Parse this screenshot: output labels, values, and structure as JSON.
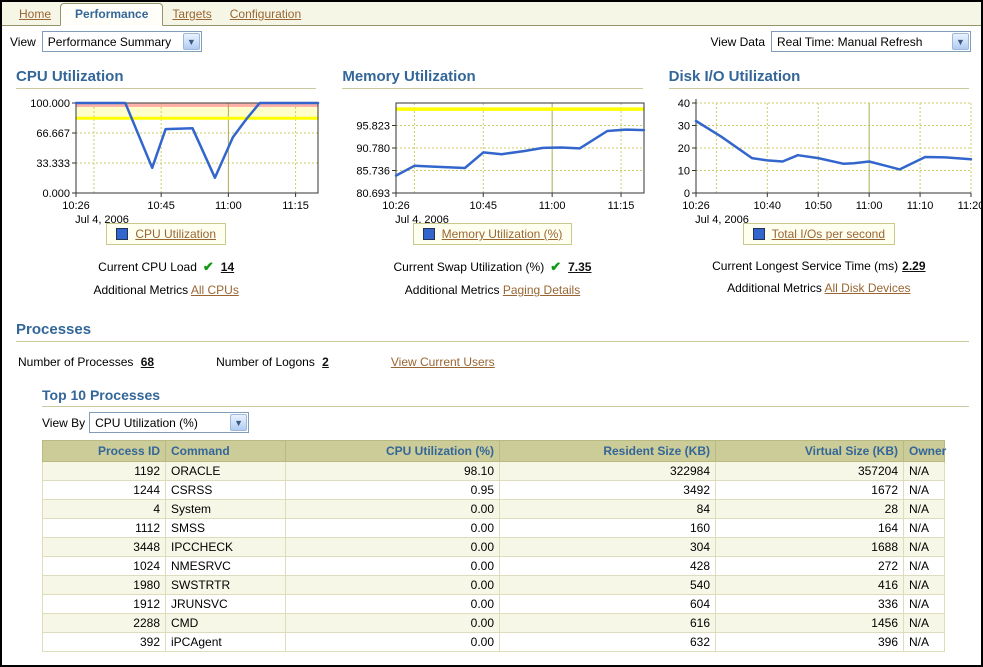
{
  "tabs": {
    "items": [
      {
        "label": "Home",
        "active": false
      },
      {
        "label": "Performance",
        "active": true
      },
      {
        "label": "Targets",
        "active": false
      },
      {
        "label": "Configuration",
        "active": false
      }
    ]
  },
  "toolbar": {
    "view_label": "View",
    "view_value": "Performance Summary",
    "view_data_label": "View Data",
    "view_data_value": "Real Time: Manual Refresh"
  },
  "colors": {
    "accent_blue": "#336699",
    "link_brown": "#996633",
    "series_blue": "#3366cc",
    "warning_yellow": "#ffff00",
    "critical_pink": "#ffb0a8",
    "header_tan": "#cccc99"
  },
  "chart_data": [
    {
      "type": "line",
      "title": "CPU Utilization",
      "x_axis_note": "x values are minutes after 10:26",
      "xlim": [
        0,
        54
      ],
      "ylim": [
        0,
        100
      ],
      "frame": "box",
      "yticks": [
        {
          "v": 0,
          "label": "0.000"
        },
        {
          "v": 33.333,
          "label": "33.333"
        },
        {
          "v": 66.667,
          "label": "66.667"
        },
        {
          "v": 100,
          "label": "100.000"
        }
      ],
      "xticks": [
        {
          "v": 0,
          "label": "10:26"
        },
        {
          "v": 19,
          "label": "10:45"
        },
        {
          "v": 34,
          "label": "11:00"
        },
        {
          "v": 49,
          "label": "11:15"
        }
      ],
      "date_label": "Jul 4, 2006",
      "legend": {
        "label": "CPU Utilization",
        "color": "#3366cc"
      },
      "bands": [
        {
          "from": 95.5,
          "to": 99.3,
          "color": "#ffb0a8"
        },
        {
          "from": 83,
          "to": 95.5,
          "color": "#ffffcc"
        }
      ],
      "threshold_lines": [
        {
          "v": 83,
          "color": "#ffff00",
          "width": 3
        }
      ],
      "grid": {
        "h_dotted": [
          33.333,
          66.667
        ],
        "v_dotted": [
          4,
          19,
          49
        ],
        "v_solid": [
          34
        ]
      },
      "series": [
        {
          "name": "CPU Utilization",
          "points": [
            [
              0,
              100
            ],
            [
              11,
              100
            ],
            [
              17,
              28
            ],
            [
              20,
              71
            ],
            [
              26,
              72
            ],
            [
              31,
              17
            ],
            [
              35,
              62
            ],
            [
              38,
              82
            ],
            [
              41,
              100
            ],
            [
              54,
              100
            ]
          ]
        }
      ]
    },
    {
      "type": "line",
      "title": "Memory Utilization",
      "x_axis_note": "x values are minutes after 10:26",
      "xlim": [
        0,
        54
      ],
      "ylim": [
        80.693,
        100.866
      ],
      "frame": "box",
      "yticks": [
        {
          "v": 80.693,
          "label": "80.693"
        },
        {
          "v": 85.736,
          "label": "85.736"
        },
        {
          "v": 90.78,
          "label": "90.780"
        },
        {
          "v": 95.823,
          "label": "95.823"
        }
      ],
      "xticks": [
        {
          "v": 0,
          "label": "10:26"
        },
        {
          "v": 19,
          "label": "10:45"
        },
        {
          "v": 34,
          "label": "11:00"
        },
        {
          "v": 49,
          "label": "11:15"
        }
      ],
      "date_label": "Jul 4, 2006",
      "legend": {
        "label": "Memory Utilization (%)",
        "color": "#3366cc"
      },
      "bands": [],
      "threshold_lines": [
        {
          "v": 99.5,
          "color": "#ffff00",
          "width": 3.5
        }
      ],
      "grid": {
        "h_dotted": [
          85.736,
          90.78,
          95.823
        ],
        "v_dotted": [
          4,
          19,
          49
        ],
        "v_solid": [
          34
        ]
      },
      "series": [
        {
          "name": "Memory Utilization (%)",
          "points": [
            [
              0,
              84.6
            ],
            [
              4,
              86.8
            ],
            [
              8,
              86.6
            ],
            [
              15,
              86.3
            ],
            [
              19,
              89.8
            ],
            [
              23,
              89.4
            ],
            [
              28,
              90.1
            ],
            [
              32,
              90.8
            ],
            [
              36,
              90.9
            ],
            [
              40,
              90.7
            ],
            [
              46,
              94.6
            ],
            [
              50,
              94.9
            ],
            [
              54,
              94.8
            ]
          ]
        }
      ]
    },
    {
      "type": "line",
      "title": "Disk I/O Utilization",
      "x_axis_note": "x values are minutes after 10:26",
      "xlim": [
        0,
        54
      ],
      "ylim": [
        0,
        40
      ],
      "frame": "axes",
      "yticks": [
        {
          "v": 0,
          "label": "0"
        },
        {
          "v": 10,
          "label": "10"
        },
        {
          "v": 20,
          "label": "20"
        },
        {
          "v": 30,
          "label": "30"
        },
        {
          "v": 40,
          "label": "40"
        }
      ],
      "xticks": [
        {
          "v": 0,
          "label": "10:26"
        },
        {
          "v": 14,
          "label": "10:40"
        },
        {
          "v": 24,
          "label": "10:50"
        },
        {
          "v": 34,
          "label": "11:00"
        },
        {
          "v": 44,
          "label": "11:10"
        },
        {
          "v": 54,
          "label": "11:20"
        }
      ],
      "date_label": "Jul 4, 2006",
      "legend": {
        "label": "Total I/Os per second",
        "color": "#3366cc"
      },
      "bands": [],
      "threshold_lines": [],
      "grid": {
        "h_dotted": [
          10,
          20,
          30,
          40
        ],
        "v_dotted": [
          4,
          14,
          24,
          44,
          54
        ],
        "v_solid": [
          34
        ]
      },
      "series": [
        {
          "name": "Total I/Os per second",
          "points": [
            [
              0,
              32
            ],
            [
              5,
              25
            ],
            [
              11,
              15.5
            ],
            [
              14,
              14.5
            ],
            [
              17,
              14
            ],
            [
              20,
              16.8
            ],
            [
              24,
              15.5
            ],
            [
              29,
              13
            ],
            [
              31,
              13.2
            ],
            [
              34,
              14
            ],
            [
              40,
              10.5
            ],
            [
              45,
              16
            ],
            [
              49,
              15.8
            ],
            [
              54,
              15
            ]
          ]
        }
      ]
    }
  ],
  "panels": [
    {
      "metric_label": "Current CPU Load",
      "metric_value": "14",
      "has_check": true,
      "additional_label": "Additional Metrics",
      "additional_link": "All CPUs"
    },
    {
      "metric_label": "Current Swap Utilization (%)",
      "metric_value": "7.35",
      "has_check": true,
      "additional_label": "Additional Metrics",
      "additional_link": "Paging Details"
    },
    {
      "metric_label": "Current Longest Service Time (ms)",
      "metric_value": "2.29",
      "has_check": false,
      "additional_label": "Additional Metrics",
      "additional_link": "All Disk Devices"
    }
  ],
  "processes": {
    "title": "Processes",
    "stats": [
      {
        "label": "Number of Processes",
        "value": "68"
      },
      {
        "label": "Number of Logons",
        "value": "2"
      }
    ],
    "current_users_link": "View Current Users",
    "top10": {
      "title": "Top 10 Processes",
      "view_by_label": "View By",
      "view_by_value": "CPU Utilization (%)",
      "columns": [
        "Process ID",
        "Command",
        "CPU Utilization (%)",
        "Resident Size (KB)",
        "Virtual Size (KB)",
        "Owner"
      ],
      "col_align": [
        "right",
        "left",
        "right",
        "right",
        "right",
        "left"
      ],
      "rows": [
        [
          "1192",
          "ORACLE",
          "98.10",
          "322984",
          "357204",
          "N/A"
        ],
        [
          "1244",
          "CSRSS",
          "0.95",
          "3492",
          "1672",
          "N/A"
        ],
        [
          "4",
          "System",
          "0.00",
          "84",
          "28",
          "N/A"
        ],
        [
          "1112",
          "SMSS",
          "0.00",
          "160",
          "164",
          "N/A"
        ],
        [
          "3448",
          "IPCCHECK",
          "0.00",
          "304",
          "1688",
          "N/A"
        ],
        [
          "1024",
          "NMESRVC",
          "0.00",
          "428",
          "272",
          "N/A"
        ],
        [
          "1980",
          "SWSTRTR",
          "0.00",
          "540",
          "416",
          "N/A"
        ],
        [
          "1912",
          "JRUNSVC",
          "0.00",
          "604",
          "336",
          "N/A"
        ],
        [
          "2288",
          "CMD",
          "0.00",
          "616",
          "1456",
          "N/A"
        ],
        [
          "392",
          "iPCAgent",
          "0.00",
          "632",
          "396",
          "N/A"
        ]
      ]
    }
  }
}
